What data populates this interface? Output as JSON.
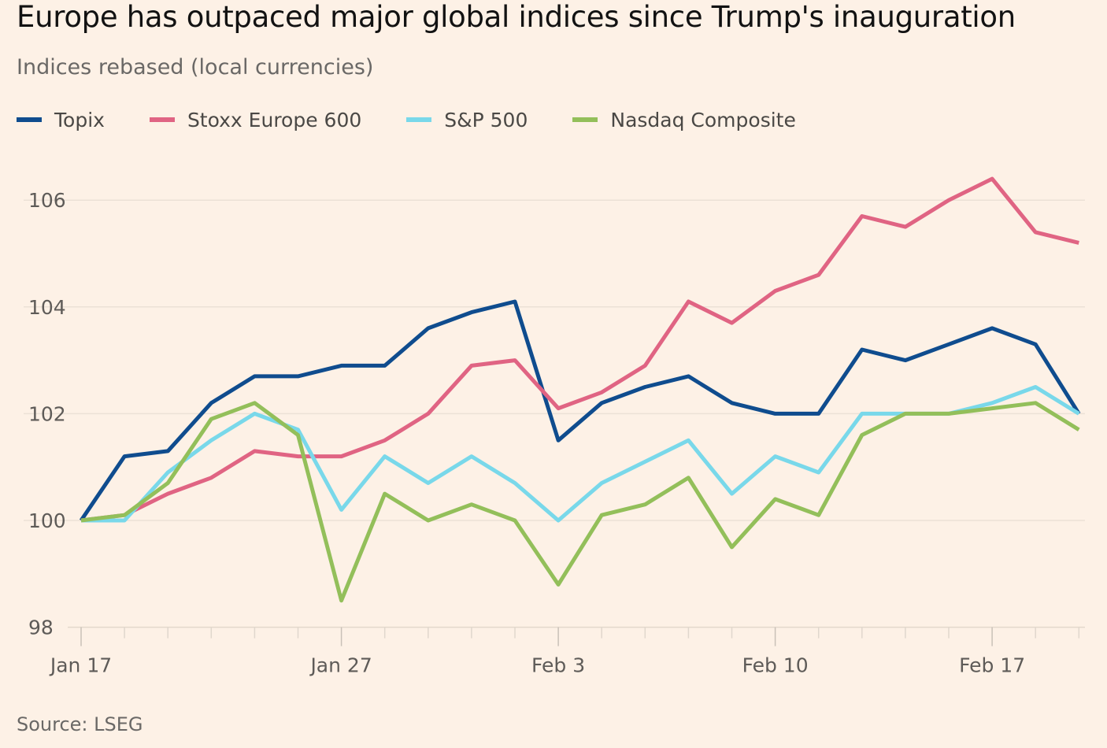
{
  "chart_data": {
    "type": "line",
    "title": "Europe has outpaced major global indices since Trump's inauguration",
    "subtitle": "Indices rebased (local currencies)",
    "source": "Source: LSEG",
    "x": [
      "Jan 17",
      "Jan 20",
      "Jan 21",
      "Jan 22",
      "Jan 23",
      "Jan 24",
      "Jan 27",
      "Jan 28",
      "Jan 29",
      "Jan 30",
      "Jan 31",
      "Feb 3",
      "Feb 4",
      "Feb 5",
      "Feb 6",
      "Feb 7",
      "Feb 10",
      "Feb 11",
      "Feb 12",
      "Feb 13",
      "Feb 14",
      "Feb 17",
      "Feb 18",
      "Feb 19",
      "Feb 20"
    ],
    "x_tick_labels": [
      "Jan 17",
      "Jan 27",
      "Feb 3",
      "Feb 10",
      "Feb 17"
    ],
    "ylim": [
      98,
      107
    ],
    "y_ticks": [
      98,
      100,
      102,
      104,
      106
    ],
    "grid": true,
    "legend_position": "top",
    "series": [
      {
        "name": "Topix",
        "color": "#0f4c8e",
        "values": [
          100.0,
          101.2,
          101.3,
          102.2,
          102.7,
          102.7,
          102.9,
          102.9,
          103.6,
          103.9,
          104.1,
          101.5,
          102.2,
          102.5,
          102.7,
          102.2,
          102.0,
          102.0,
          103.2,
          103.0,
          103.3,
          103.6,
          103.3,
          102.0,
          null
        ]
      },
      {
        "name": "Stoxx Europe 600",
        "color": "#e06483",
        "values": [
          100.0,
          100.1,
          100.5,
          100.8,
          101.3,
          101.2,
          101.2,
          101.5,
          102.0,
          102.9,
          103.0,
          102.1,
          102.4,
          102.9,
          104.1,
          103.7,
          104.3,
          104.6,
          105.7,
          105.5,
          106.0,
          106.4,
          105.4,
          105.2,
          null
        ]
      },
      {
        "name": "S&P 500",
        "color": "#79d8ea",
        "values": [
          100.0,
          100.0,
          100.9,
          101.5,
          102.0,
          101.7,
          100.2,
          101.2,
          100.7,
          101.2,
          100.7,
          100.0,
          100.7,
          101.1,
          101.5,
          100.5,
          101.2,
          100.9,
          102.0,
          102.0,
          102.0,
          102.2,
          102.5,
          102.0,
          null
        ]
      },
      {
        "name": "Nasdaq Composite",
        "color": "#93bf5a",
        "values": [
          100.0,
          100.1,
          100.7,
          101.9,
          102.2,
          101.6,
          98.5,
          100.5,
          100.0,
          100.3,
          100.0,
          98.8,
          100.1,
          100.3,
          100.8,
          99.5,
          100.4,
          100.1,
          101.6,
          102.0,
          102.0,
          102.1,
          102.2,
          101.7,
          null
        ]
      }
    ]
  }
}
